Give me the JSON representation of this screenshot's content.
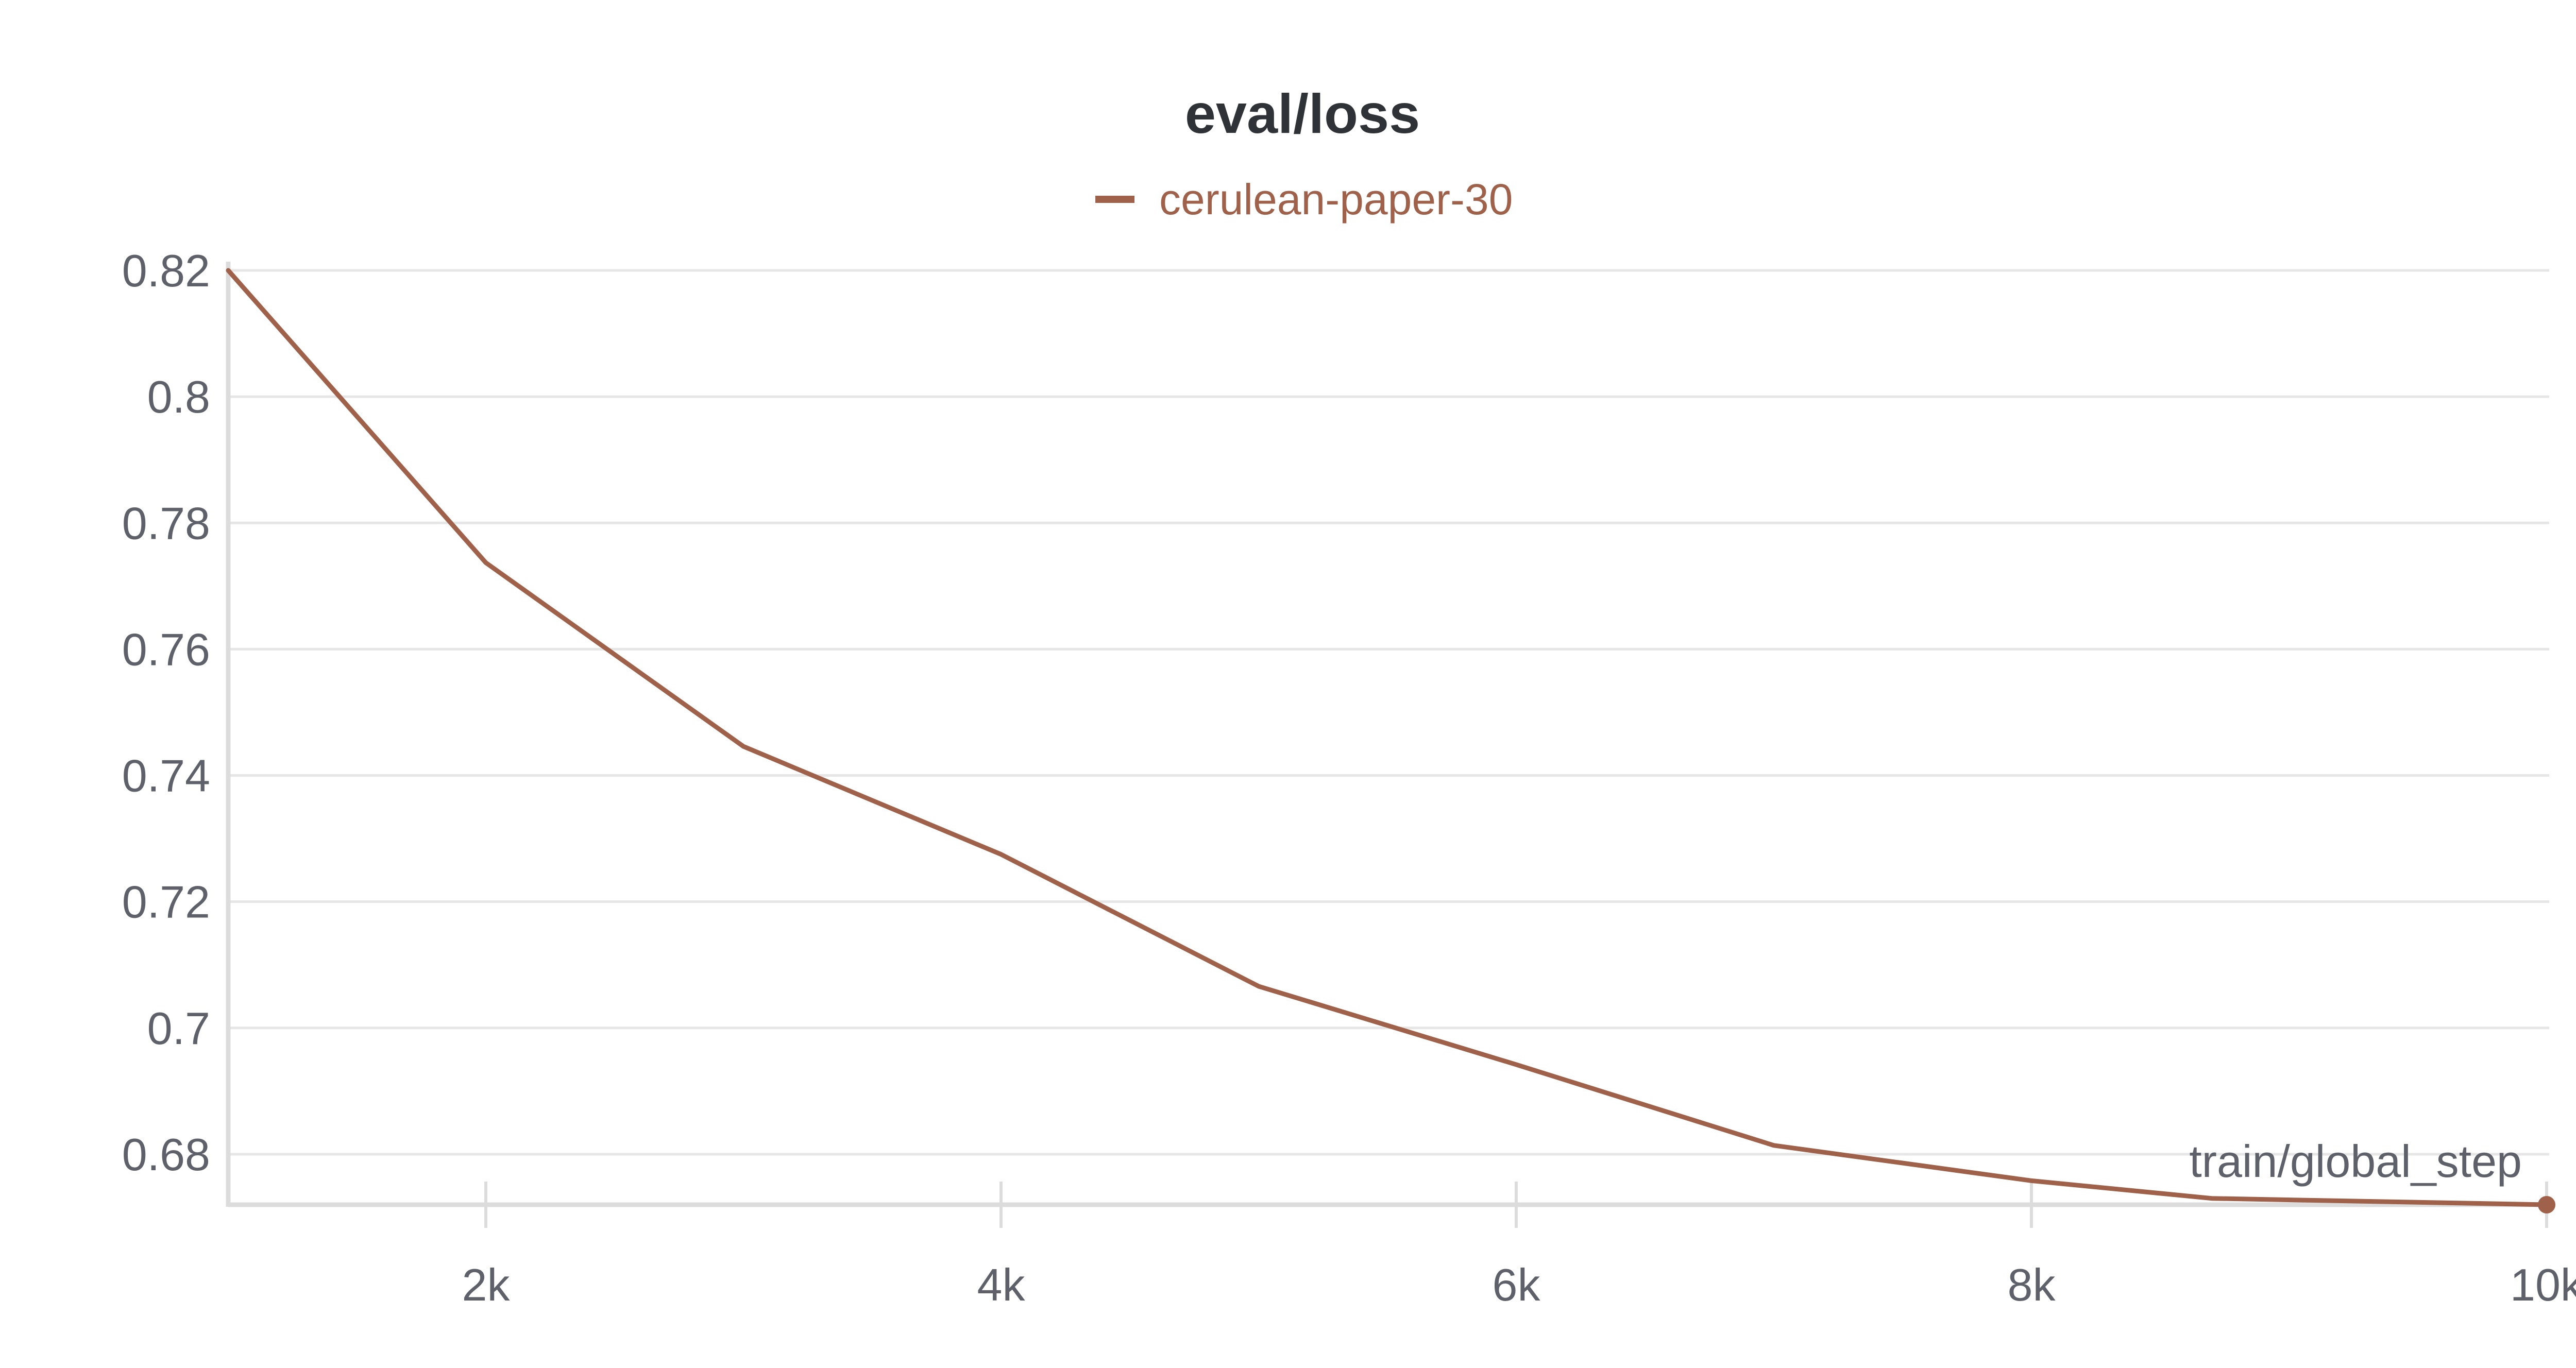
{
  "chart_data": {
    "type": "line",
    "title": "eval/loss",
    "xlabel": "train/global_step",
    "ylabel": "",
    "xlim": [
      1000,
      10000
    ],
    "ylim": [
      0.672,
      0.82
    ],
    "x_ticks": [
      2000,
      4000,
      6000,
      8000,
      10000
    ],
    "x_tick_labels": [
      "2k",
      "4k",
      "6k",
      "8k",
      "10k"
    ],
    "y_ticks": [
      0.68,
      0.7,
      0.72,
      0.74,
      0.76,
      0.78,
      0.8,
      0.82
    ],
    "y_tick_labels": [
      "0.68",
      "0.7",
      "0.72",
      "0.74",
      "0.76",
      "0.78",
      "0.8",
      "0.82"
    ],
    "grid": "horizontal",
    "legend_position": "top-center",
    "colors": {
      "series": "#a0614a",
      "grid": "#e6e6e6",
      "axis": "#dcdcdc",
      "tick_text": "#5e6169",
      "title": "#2f3338"
    },
    "series": [
      {
        "name": "cerulean-paper-30",
        "x": [
          1000,
          2000,
          3000,
          4000,
          5000,
          6000,
          7000,
          8000,
          8700,
          10000
        ],
        "values": [
          0.82,
          0.7737,
          0.7446,
          0.7275,
          0.7066,
          0.6942,
          0.6814,
          0.6758,
          0.673,
          0.672
        ]
      }
    ]
  }
}
